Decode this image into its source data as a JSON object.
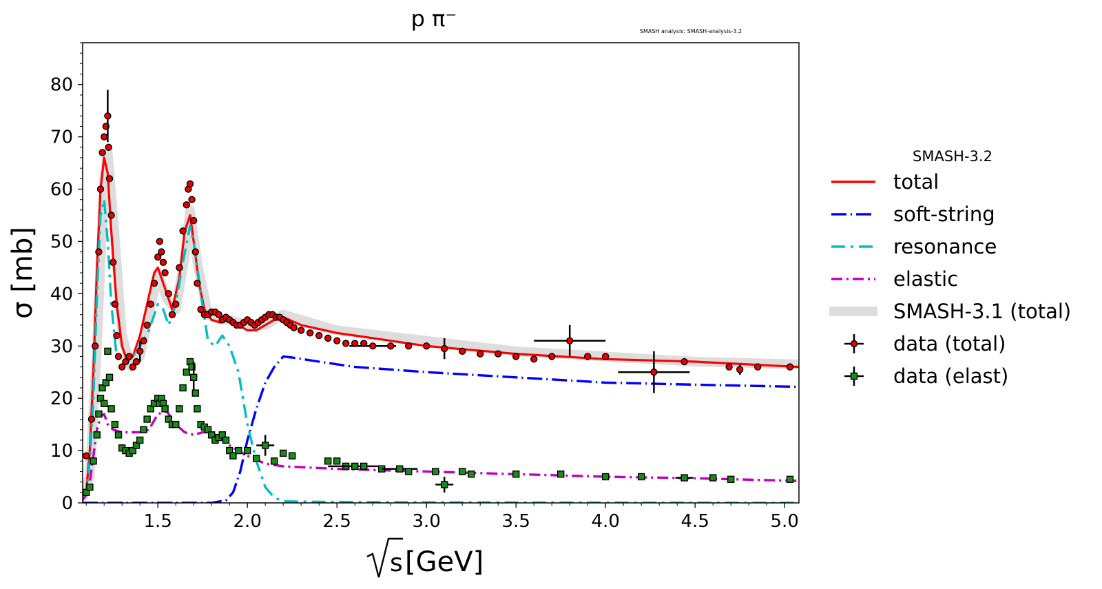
{
  "chart_data": {
    "type": "line",
    "title": "p π⁻",
    "watermark": "SMASH analysis: SMASH-analysis-3.2",
    "xlabel_root": "s",
    "xlabel_unit": "[GeV]",
    "ylabel": "σ [mb]",
    "xlim": [
      1.08,
      5.08
    ],
    "ylim": [
      0,
      88
    ],
    "xticks": [
      1.5,
      2.0,
      2.5,
      3.0,
      3.5,
      4.0,
      4.5,
      5.0
    ],
    "xtick_labels": [
      "1.5",
      "2.0",
      "2.5",
      "3.0",
      "3.5",
      "4.0",
      "4.5",
      "5.0"
    ],
    "yticks": [
      0,
      10,
      20,
      30,
      40,
      50,
      60,
      70,
      80
    ],
    "ytick_labels": [
      "0",
      "10",
      "20",
      "30",
      "40",
      "50",
      "60",
      "70",
      "80"
    ],
    "legend": {
      "title": "SMASH-3.2",
      "placement": "right, outside axes",
      "entries": [
        "total",
        "soft-string",
        "resonance",
        "elastic",
        "SMASH-3.1 (total)",
        "data (total)",
        "data (elast)"
      ]
    },
    "series": [
      {
        "name": "SMASH-3.1 (total)",
        "color": "#dddddd",
        "style": "band",
        "x": [
          1.08,
          1.12,
          1.16,
          1.2,
          1.22,
          1.25,
          1.3,
          1.35,
          1.4,
          1.45,
          1.5,
          1.55,
          1.6,
          1.65,
          1.68,
          1.72,
          1.78,
          1.85,
          1.9,
          2.0,
          2.1,
          2.2,
          2.3,
          2.5,
          3.0,
          3.5,
          4.0,
          4.5,
          5.08
        ],
        "y": [
          1,
          5,
          30,
          62,
          67,
          55,
          32,
          26,
          28,
          36,
          44,
          39,
          37,
          47,
          56,
          46,
          36,
          35,
          35,
          34,
          34,
          36,
          35,
          33,
          31,
          29,
          28,
          27,
          26.5
        ]
      },
      {
        "name": "total",
        "color": "#ff0000",
        "style": "solid",
        "x": [
          1.08,
          1.1,
          1.12,
          1.14,
          1.16,
          1.18,
          1.2,
          1.22,
          1.24,
          1.27,
          1.3,
          1.33,
          1.36,
          1.4,
          1.44,
          1.48,
          1.5,
          1.52,
          1.55,
          1.58,
          1.62,
          1.65,
          1.68,
          1.7,
          1.73,
          1.76,
          1.8,
          1.85,
          1.9,
          1.95,
          2.0,
          2.05,
          2.1,
          2.15,
          2.2,
          2.3,
          2.5,
          3.0,
          3.5,
          4.0,
          4.5,
          5.08
        ],
        "y": [
          0.5,
          2,
          10,
          25,
          45,
          60,
          66,
          63,
          52,
          38,
          30,
          27,
          28,
          32,
          38,
          44,
          45,
          43,
          40,
          37,
          43,
          52,
          55,
          50,
          42,
          37,
          35,
          34.5,
          35,
          34,
          33,
          33,
          34,
          35,
          35.5,
          34,
          32.5,
          30,
          28.5,
          27.5,
          27,
          26
        ]
      },
      {
        "name": "soft-string",
        "color": "#0000ff",
        "style": "long-dash",
        "x": [
          1.08,
          1.8,
          1.88,
          1.92,
          1.96,
          2.0,
          2.05,
          2.1,
          2.15,
          2.2,
          2.25,
          2.4,
          2.6,
          3.0,
          3.5,
          4.0,
          4.5,
          5.08
        ],
        "y": [
          0,
          0,
          0.5,
          2,
          6,
          12,
          18,
          23,
          26,
          28,
          27.8,
          27,
          26,
          25,
          24,
          23,
          22.6,
          22.2
        ]
      },
      {
        "name": "resonance",
        "color": "#00bfbf",
        "style": "dash",
        "x": [
          1.08,
          1.1,
          1.12,
          1.14,
          1.16,
          1.18,
          1.2,
          1.22,
          1.24,
          1.27,
          1.3,
          1.33,
          1.36,
          1.4,
          1.45,
          1.5,
          1.53,
          1.56,
          1.6,
          1.64,
          1.68,
          1.71,
          1.74,
          1.78,
          1.82,
          1.86,
          1.9,
          1.95,
          2.0,
          2.05,
          2.1,
          2.15,
          2.2,
          2.4,
          3.0,
          4.0,
          5.08
        ],
        "y": [
          0.5,
          2,
          8,
          20,
          40,
          55,
          58,
          50,
          38,
          28,
          26,
          27,
          28,
          30,
          33,
          38,
          37,
          34,
          38,
          46,
          53,
          48,
          40,
          31,
          30,
          32,
          30,
          25,
          15,
          8,
          3,
          1,
          0.3,
          0.2,
          0.1,
          0.05,
          0
        ]
      },
      {
        "name": "elastic",
        "color": "#bf00bf",
        "style": "dash-dot",
        "x": [
          1.08,
          1.1,
          1.12,
          1.14,
          1.16,
          1.18,
          1.2,
          1.22,
          1.25,
          1.3,
          1.35,
          1.4,
          1.45,
          1.5,
          1.55,
          1.6,
          1.65,
          1.7,
          1.75,
          1.8,
          1.85,
          1.9,
          1.95,
          2.0,
          2.1,
          2.2,
          2.5,
          3.0,
          3.5,
          4.0,
          4.5,
          5.08
        ],
        "y": [
          0.5,
          1.5,
          4,
          9,
          14,
          16.5,
          17,
          15,
          14,
          13.5,
          13.5,
          13.5,
          14,
          17,
          17.5,
          15,
          13.5,
          13,
          13.5,
          13.5,
          12.5,
          11,
          10,
          9,
          7.5,
          7,
          6.5,
          6,
          5.5,
          5,
          4.7,
          4.2
        ]
      }
    ],
    "data_total": {
      "name": "data (total)",
      "color": "#e80000",
      "x": [
        1.1,
        1.13,
        1.15,
        1.17,
        1.18,
        1.19,
        1.2,
        1.21,
        1.22,
        1.225,
        1.23,
        1.24,
        1.25,
        1.26,
        1.27,
        1.28,
        1.3,
        1.32,
        1.34,
        1.36,
        1.38,
        1.4,
        1.42,
        1.44,
        1.46,
        1.48,
        1.5,
        1.51,
        1.52,
        1.53,
        1.54,
        1.56,
        1.58,
        1.6,
        1.62,
        1.64,
        1.66,
        1.67,
        1.68,
        1.69,
        1.7,
        1.71,
        1.72,
        1.74,
        1.76,
        1.78,
        1.8,
        1.82,
        1.84,
        1.86,
        1.88,
        1.9,
        1.92,
        1.94,
        1.96,
        1.98,
        2.0,
        2.02,
        2.04,
        2.06,
        2.08,
        2.1,
        2.12,
        2.14,
        2.16,
        2.18,
        2.2,
        2.22,
        2.24,
        2.26,
        2.3,
        2.35,
        2.4,
        2.45,
        2.5,
        2.55,
        2.6,
        2.65,
        2.7,
        2.8,
        2.9,
        3.0,
        3.1,
        3.2,
        3.3,
        3.4,
        3.5,
        3.6,
        3.7,
        3.8,
        3.9,
        4.0,
        4.27,
        4.44,
        4.69,
        4.75,
        4.85,
        5.03
      ],
      "y": [
        9,
        16,
        30,
        48,
        60,
        67,
        70,
        72,
        74,
        68,
        62,
        55,
        46,
        38,
        32,
        28,
        26,
        27,
        28,
        26,
        27,
        29,
        31,
        34,
        38,
        42,
        47,
        50,
        48,
        46,
        44,
        40,
        36,
        38,
        45,
        52,
        57,
        60,
        61,
        58,
        54,
        48,
        42,
        37,
        36,
        36,
        36.5,
        36.5,
        36,
        35,
        35.5,
        35,
        34.5,
        34,
        34,
        34.5,
        35,
        34.5,
        34,
        34.5,
        35,
        35.5,
        36,
        36,
        35.5,
        35.5,
        35,
        34.5,
        34,
        33.5,
        33,
        32.5,
        32,
        31.5,
        31,
        30.5,
        30.5,
        30.5,
        30,
        30,
        30,
        30,
        29.5,
        29,
        28.5,
        28.5,
        28,
        27.5,
        28,
        31,
        28,
        28,
        25,
        27,
        26,
        25.5,
        26,
        26
      ],
      "xerr": [
        0,
        0,
        0,
        0,
        0,
        0,
        0,
        0,
        0,
        0,
        0,
        0,
        0,
        0,
        0,
        0,
        0,
        0,
        0,
        0,
        0,
        0,
        0,
        0,
        0,
        0,
        0,
        0,
        0,
        0,
        0,
        0,
        0,
        0,
        0,
        0,
        0,
        0,
        0,
        0,
        0,
        0,
        0,
        0,
        0,
        0,
        0,
        0,
        0,
        0,
        0,
        0,
        0,
        0,
        0,
        0,
        0,
        0,
        0,
        0,
        0,
        0,
        0,
        0,
        0,
        0,
        0,
        0,
        0,
        0,
        0,
        0,
        0,
        0,
        0,
        0,
        0,
        0,
        0.13,
        0,
        0,
        0,
        0,
        0,
        0,
        0,
        0,
        0,
        0,
        0.2,
        0,
        0,
        0.2,
        0,
        0,
        0,
        0,
        0
      ],
      "yerr": [
        0,
        0,
        0,
        0,
        0,
        0,
        0,
        0,
        5,
        0,
        0,
        0,
        0,
        0,
        0,
        0,
        0,
        0,
        0,
        0,
        0,
        2,
        0,
        0,
        0,
        0,
        0,
        0,
        0,
        0,
        0,
        0,
        0,
        0,
        0,
        0,
        0,
        0,
        0,
        0,
        0,
        0,
        0,
        0,
        0,
        0,
        0,
        0,
        0,
        0,
        0,
        0,
        0,
        0,
        0,
        0,
        0,
        0,
        0,
        0,
        0,
        0,
        0,
        0,
        0,
        0,
        0,
        0,
        0,
        0,
        0,
        0,
        0,
        0,
        0,
        0,
        0,
        0,
        0,
        0,
        0,
        0,
        2,
        0,
        0,
        0,
        0,
        0,
        0,
        3,
        0,
        0,
        4,
        0,
        0,
        1,
        0,
        0
      ]
    },
    "data_elast": {
      "name": "data (elast)",
      "color": "#1a8a1a",
      "x": [
        1.1,
        1.12,
        1.14,
        1.16,
        1.17,
        1.18,
        1.19,
        1.2,
        1.21,
        1.22,
        1.23,
        1.24,
        1.26,
        1.28,
        1.3,
        1.32,
        1.34,
        1.36,
        1.38,
        1.4,
        1.42,
        1.44,
        1.46,
        1.48,
        1.5,
        1.51,
        1.52,
        1.53,
        1.54,
        1.56,
        1.58,
        1.6,
        1.62,
        1.64,
        1.66,
        1.68,
        1.69,
        1.7,
        1.71,
        1.72,
        1.74,
        1.76,
        1.78,
        1.8,
        1.82,
        1.84,
        1.86,
        1.88,
        1.9,
        1.92,
        1.95,
        2.0,
        2.05,
        2.1,
        2.15,
        2.2,
        2.25,
        2.45,
        2.5,
        2.55,
        2.6,
        2.65,
        2.75,
        2.85,
        2.9,
        3.05,
        3.1,
        3.2,
        3.25,
        3.5,
        3.75,
        4.0,
        4.2,
        4.44,
        4.6,
        4.7,
        5.03
      ],
      "y": [
        2,
        3,
        8,
        13,
        17,
        20,
        22,
        19,
        23,
        29,
        24,
        18,
        15,
        13,
        10.5,
        10,
        9.5,
        10,
        11,
        12,
        14,
        16,
        18,
        19,
        20,
        19,
        20,
        19,
        18,
        16,
        15,
        15,
        18,
        22,
        25,
        27,
        26,
        24,
        21,
        18,
        15,
        14.5,
        14,
        13,
        12,
        12.5,
        13,
        12,
        10,
        9,
        10,
        10,
        8.5,
        11,
        8,
        9.5,
        9,
        8,
        8,
        7,
        7,
        7,
        6.5,
        6.5,
        6,
        6,
        3.5,
        6,
        5.5,
        5.5,
        5.5,
        5,
        5,
        4.8,
        4.8,
        4.5,
        4.5
      ],
      "xerr": [
        0,
        0,
        0,
        0,
        0,
        0,
        0,
        0,
        0,
        0,
        0,
        0,
        0,
        0,
        0,
        0,
        0,
        0,
        0,
        0,
        0,
        0,
        0,
        0,
        0,
        0,
        0,
        0,
        0,
        0,
        0,
        0,
        0,
        0,
        0,
        0,
        0,
        0,
        0,
        0,
        0,
        0,
        0,
        0,
        0,
        0,
        0,
        0,
        0,
        0,
        0,
        0,
        0,
        0.05,
        0,
        0,
        0,
        0,
        0,
        0,
        0.15,
        0,
        0,
        0.1,
        0,
        0,
        0.05,
        0,
        0,
        0,
        0,
        0,
        0,
        0.05,
        0,
        0,
        0
      ],
      "yerr": [
        0,
        0,
        0,
        0,
        0,
        0,
        0,
        0,
        0,
        0,
        0,
        0,
        0,
        0,
        0,
        0,
        0,
        0,
        0,
        0,
        0,
        0,
        0,
        0,
        0,
        0,
        0,
        0,
        0,
        0,
        0,
        0,
        0,
        0,
        0,
        0,
        0,
        3,
        0,
        0,
        0,
        0,
        0,
        0,
        0,
        0,
        0,
        0,
        0,
        0,
        0,
        0,
        0,
        2,
        0,
        0,
        0,
        0,
        0,
        0,
        0,
        0,
        0,
        0,
        0,
        0,
        1.5,
        0,
        0,
        0,
        0,
        0,
        0,
        0,
        0,
        0,
        0
      ]
    }
  }
}
